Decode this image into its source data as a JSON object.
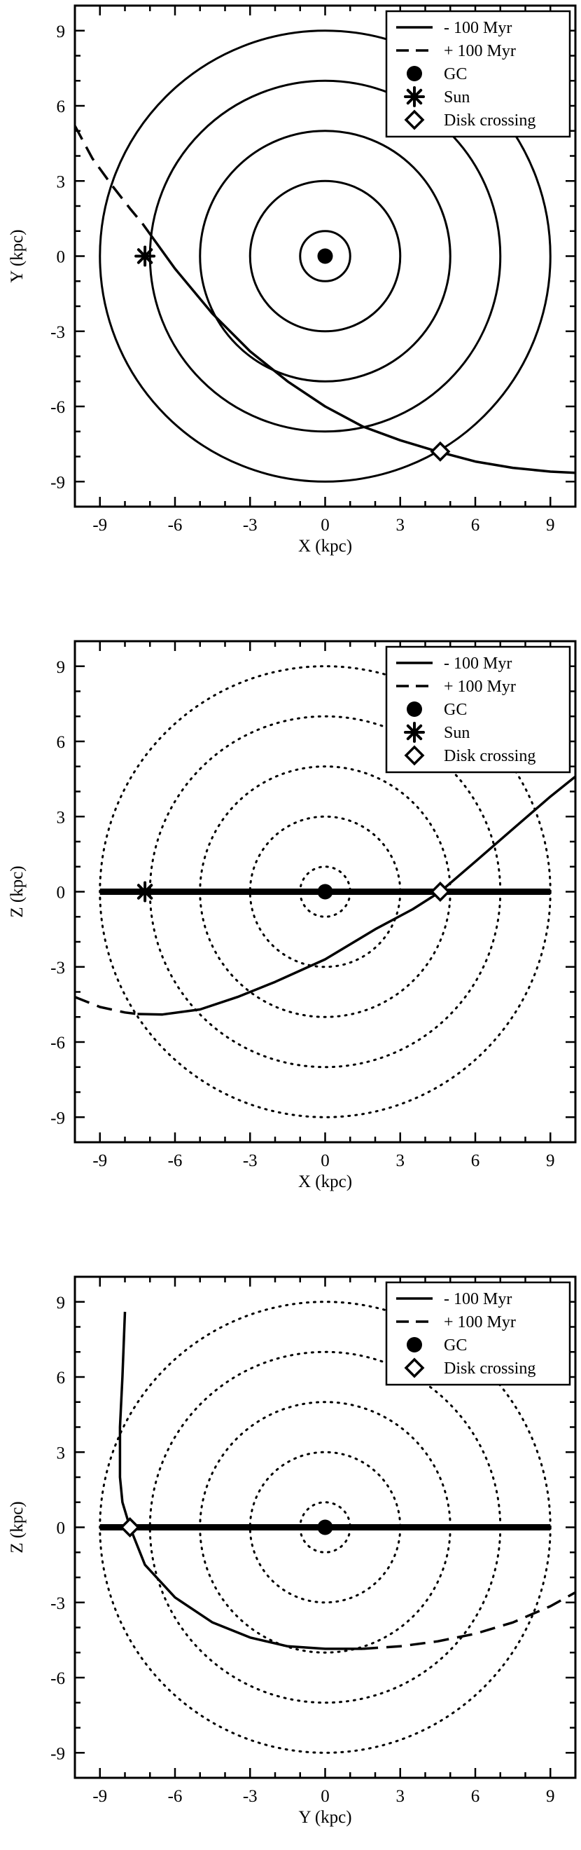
{
  "chart_data": [
    {
      "type": "line",
      "projection": "X-Y",
      "xlabel": "X (kpc)",
      "ylabel": "Y (kpc)",
      "xlim": [
        -10,
        10
      ],
      "ylim": [
        -10,
        10
      ],
      "xticks": [
        -9,
        -6,
        -3,
        0,
        3,
        6,
        9
      ],
      "yticks": [
        -9,
        -6,
        -3,
        0,
        3,
        6,
        9
      ],
      "grid": false,
      "legend_position": "top-right",
      "legend": [
        {
          "label": "- 100 Myr",
          "kind": "solid"
        },
        {
          "label": "+ 100 Myr",
          "kind": "dashed"
        },
        {
          "label": "GC",
          "kind": "dot"
        },
        {
          "label": "Sun",
          "kind": "asterisk"
        },
        {
          "label": "Disk crossing",
          "kind": "diamond"
        }
      ],
      "rings": {
        "radii": [
          1,
          3,
          5,
          7,
          9
        ],
        "style": "solid"
      },
      "disk_line": false,
      "series": [
        {
          "name": "- 100 Myr",
          "style": "solid",
          "x": [
            -7.3,
            -6.0,
            -4.5,
            -3.0,
            -1.5,
            0.0,
            1.5,
            3.0,
            4.5,
            6.0,
            7.5,
            9.0,
            10.0
          ],
          "y": [
            1.3,
            -0.5,
            -2.3,
            -3.8,
            -5.0,
            -6.0,
            -6.8,
            -7.35,
            -7.8,
            -8.2,
            -8.45,
            -8.6,
            -8.65
          ]
        },
        {
          "name": "+ 100 Myr",
          "style": "dashed",
          "x": [
            -10.0,
            -9.3,
            -8.5,
            -7.8,
            -7.3
          ],
          "y": [
            5.2,
            3.9,
            2.8,
            1.9,
            1.3
          ]
        }
      ],
      "markers": [
        {
          "name": "GC",
          "kind": "dot",
          "x": 0,
          "y": 0
        },
        {
          "name": "Sun",
          "kind": "asterisk",
          "x": -7.2,
          "y": 0
        },
        {
          "name": "Disk crossing",
          "kind": "diamond",
          "x": 4.6,
          "y": -7.8
        }
      ]
    },
    {
      "type": "line",
      "projection": "X-Z",
      "xlabel": "X (kpc)",
      "ylabel": "Z (kpc)",
      "xlim": [
        -10,
        10
      ],
      "ylim": [
        -10,
        10
      ],
      "xticks": [
        -9,
        -6,
        -3,
        0,
        3,
        6,
        9
      ],
      "yticks": [
        -9,
        -6,
        -3,
        0,
        3,
        6,
        9
      ],
      "grid": false,
      "legend_position": "top-right",
      "legend": [
        {
          "label": "- 100 Myr",
          "kind": "solid"
        },
        {
          "label": "+ 100 Myr",
          "kind": "dashed"
        },
        {
          "label": "GC",
          "kind": "dot"
        },
        {
          "label": "Sun",
          "kind": "asterisk"
        },
        {
          "label": "Disk crossing",
          "kind": "diamond"
        }
      ],
      "rings": {
        "radii": [
          1,
          3,
          5,
          7,
          9
        ],
        "style": "dotted"
      },
      "disk_line": true,
      "series": [
        {
          "name": "- 100 Myr",
          "style": "solid",
          "x": [
            -7.5,
            -6.5,
            -5.0,
            -3.5,
            -2.0,
            0.0,
            2.0,
            3.5,
            4.6,
            6.0,
            7.5,
            9.0,
            10.0
          ],
          "y": [
            -4.88,
            -4.9,
            -4.7,
            -4.2,
            -3.6,
            -2.7,
            -1.5,
            -0.7,
            0.0,
            1.2,
            2.5,
            3.8,
            4.6
          ]
        },
        {
          "name": "+ 100 Myr",
          "style": "dashed",
          "x": [
            -10.0,
            -9.0,
            -8.0,
            -7.5
          ],
          "y": [
            -4.2,
            -4.6,
            -4.82,
            -4.88
          ]
        }
      ],
      "markers": [
        {
          "name": "GC",
          "kind": "dot",
          "x": 0,
          "y": 0
        },
        {
          "name": "Sun",
          "kind": "asterisk",
          "x": -7.2,
          "y": 0
        },
        {
          "name": "Disk crossing",
          "kind": "diamond",
          "x": 4.6,
          "y": 0
        }
      ]
    },
    {
      "type": "line",
      "projection": "Y-Z",
      "xlabel": "Y (kpc)",
      "ylabel": "Z (kpc)",
      "xlim": [
        -10,
        10
      ],
      "ylim": [
        -10,
        10
      ],
      "xticks": [
        -9,
        -6,
        -3,
        0,
        3,
        6,
        9
      ],
      "yticks": [
        -9,
        -6,
        -3,
        0,
        3,
        6,
        9
      ],
      "grid": false,
      "legend_position": "top-right",
      "legend": [
        {
          "label": "- 100 Myr",
          "kind": "solid"
        },
        {
          "label": "+ 100 Myr",
          "kind": "dashed"
        },
        {
          "label": "GC",
          "kind": "dot"
        },
        {
          "label": "Disk crossing",
          "kind": "diamond"
        }
      ],
      "rings": {
        "radii": [
          1,
          3,
          5,
          7,
          9
        ],
        "style": "dotted"
      },
      "disk_line": true,
      "series": [
        {
          "name": "- 100 Myr",
          "style": "solid",
          "x": [
            -8.0,
            -8.1,
            -8.2,
            -8.2,
            -8.1,
            -7.8,
            -7.2,
            -6.0,
            -4.5,
            -3.0,
            -1.5,
            0.0,
            1.5
          ],
          "y": [
            8.6,
            6.0,
            4.0,
            2.0,
            1.0,
            0.0,
            -1.5,
            -2.8,
            -3.8,
            -4.4,
            -4.75,
            -4.85,
            -4.85
          ]
        },
        {
          "name": "+ 100 Myr",
          "style": "dashed",
          "x": [
            1.5,
            3.0,
            4.5,
            6.0,
            7.5,
            9.0,
            10.0
          ],
          "y": [
            -4.85,
            -4.75,
            -4.55,
            -4.25,
            -3.8,
            -3.15,
            -2.6
          ]
        }
      ],
      "markers": [
        {
          "name": "GC",
          "kind": "dot",
          "x": 0,
          "y": 0
        },
        {
          "name": "Disk crossing",
          "kind": "diamond",
          "x": -7.8,
          "y": 0
        }
      ]
    }
  ]
}
